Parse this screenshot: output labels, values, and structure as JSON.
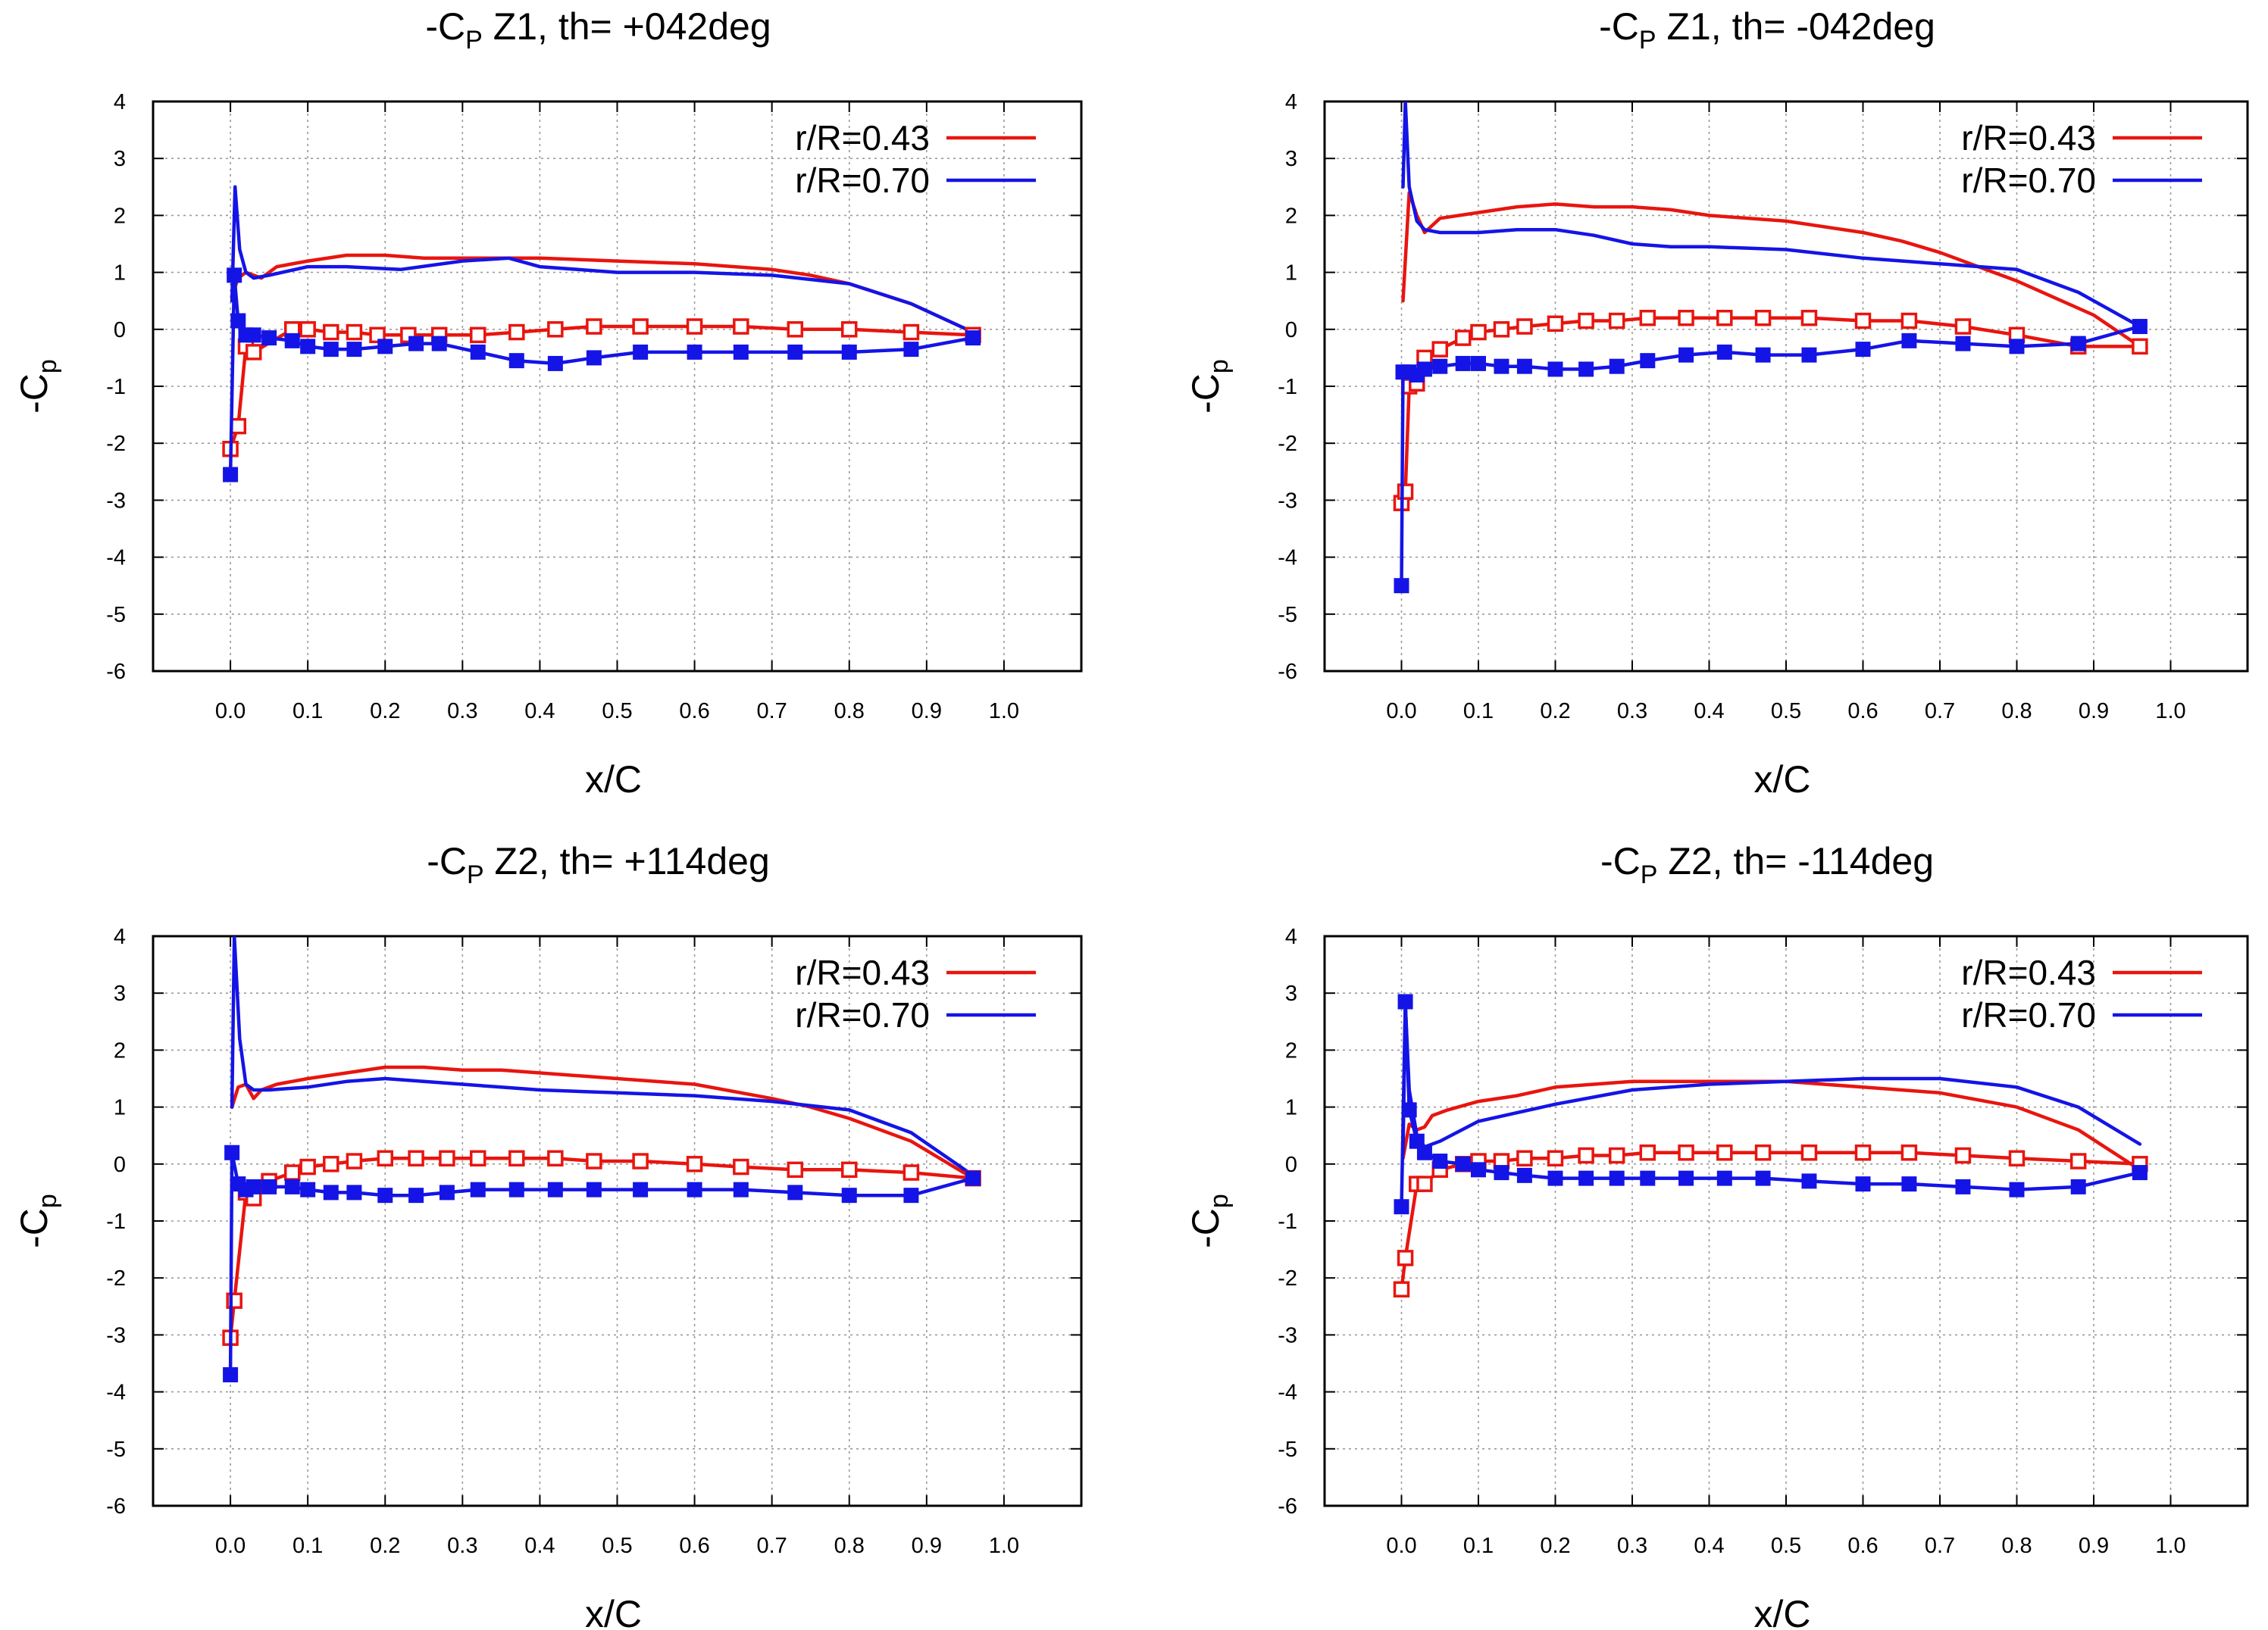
{
  "colors": {
    "r043": "#e8150f",
    "r070": "#1414e6",
    "grid": "#9a9a9a",
    "axis": "#000000"
  },
  "chart_data": [
    {
      "type": "line",
      "title": {
        "prefix": "-C",
        "sub": "P",
        "rest": " Z1, th= +042deg"
      },
      "xlabel": "x/C",
      "ylabel": {
        "prefix": "-C",
        "sub": "p"
      },
      "xlim": [
        -0.1,
        1.1
      ],
      "ylim": [
        -6,
        4
      ],
      "xticks": [
        "0.0",
        "0.1",
        "0.2",
        "0.3",
        "0.4",
        "0.5",
        "0.6",
        "0.7",
        "0.8",
        "0.9",
        "1.0"
      ],
      "yticks": [
        "4",
        "3",
        "2",
        "1",
        "0",
        "-1",
        "-2",
        "-3",
        "-4",
        "-5",
        "-6"
      ],
      "legend": [
        "r/R=0.43",
        "r/R=0.70"
      ],
      "series": [
        {
          "name": "r/R=0.43",
          "color_key": "r043",
          "kind": "line",
          "x": [
            0.005,
            0.01,
            0.02,
            0.03,
            0.04,
            0.06,
            0.1,
            0.15,
            0.2,
            0.25,
            0.3,
            0.35,
            0.4,
            0.5,
            0.6,
            0.7,
            0.75,
            0.8,
            0.88,
            0.96
          ],
          "y": [
            0.7,
            0.9,
            1.0,
            0.95,
            0.9,
            1.1,
            1.2,
            1.3,
            1.3,
            1.25,
            1.25,
            1.25,
            1.25,
            1.2,
            1.15,
            1.05,
            0.95,
            0.8,
            0.45,
            -0.05
          ]
        },
        {
          "name": "r/R=0.70",
          "color_key": "r070",
          "kind": "line",
          "x": [
            0.002,
            0.006,
            0.012,
            0.02,
            0.03,
            0.05,
            0.1,
            0.15,
            0.22,
            0.3,
            0.36,
            0.4,
            0.5,
            0.6,
            0.7,
            0.8,
            0.88,
            0.96
          ],
          "y": [
            0.5,
            2.5,
            1.4,
            1.0,
            0.9,
            0.95,
            1.1,
            1.1,
            1.05,
            1.2,
            1.25,
            1.1,
            1.0,
            1.0,
            0.95,
            0.8,
            0.45,
            -0.05
          ]
        },
        {
          "name": "r/R=0.43",
          "color_key": "r043",
          "kind": "markers-open",
          "x": [
            0.0,
            0.01,
            0.02,
            0.03,
            0.08,
            0.1,
            0.13,
            0.16,
            0.19,
            0.23,
            0.27,
            0.32,
            0.37,
            0.42,
            0.47,
            0.53,
            0.6,
            0.66,
            0.73,
            0.8,
            0.88,
            0.96
          ],
          "y": [
            -2.1,
            -1.7,
            -0.3,
            -0.4,
            0.0,
            0.0,
            -0.05,
            -0.05,
            -0.1,
            -0.1,
            -0.1,
            -0.1,
            -0.05,
            0.0,
            0.05,
            0.05,
            0.05,
            0.05,
            0.0,
            0.0,
            -0.05,
            -0.1
          ]
        },
        {
          "name": "r/R=0.70",
          "color_key": "r070",
          "kind": "markers-filled",
          "x": [
            0.0,
            0.005,
            0.01,
            0.02,
            0.03,
            0.05,
            0.08,
            0.1,
            0.13,
            0.16,
            0.2,
            0.24,
            0.27,
            0.32,
            0.37,
            0.42,
            0.47,
            0.53,
            0.6,
            0.66,
            0.73,
            0.8,
            0.88,
            0.96
          ],
          "y": [
            -2.55,
            0.95,
            0.15,
            -0.1,
            -0.1,
            -0.15,
            -0.2,
            -0.3,
            -0.35,
            -0.35,
            -0.3,
            -0.25,
            -0.25,
            -0.4,
            -0.55,
            -0.6,
            -0.5,
            -0.4,
            -0.4,
            -0.4,
            -0.4,
            -0.4,
            -0.35,
            -0.15
          ]
        }
      ]
    },
    {
      "type": "line",
      "title": {
        "prefix": "-C",
        "sub": "P",
        "rest": " Z1, th= -042deg"
      },
      "xlabel": "x/C",
      "ylabel": {
        "prefix": "-C",
        "sub": "p"
      },
      "xlim": [
        -0.1,
        1.1
      ],
      "ylim": [
        -6,
        4
      ],
      "xticks": [
        "0.0",
        "0.1",
        "0.2",
        "0.3",
        "0.4",
        "0.5",
        "0.6",
        "0.7",
        "0.8",
        "0.9",
        "1.0"
      ],
      "yticks": [
        "4",
        "3",
        "2",
        "1",
        "0",
        "-1",
        "-2",
        "-3",
        "-4",
        "-5",
        "-6"
      ],
      "legend": [
        "r/R=0.43",
        "r/R=0.70"
      ],
      "series": [
        {
          "name": "r/R=0.43",
          "color_key": "r043",
          "kind": "line",
          "x": [
            0.002,
            0.01,
            0.02,
            0.03,
            0.05,
            0.1,
            0.15,
            0.2,
            0.25,
            0.3,
            0.35,
            0.4,
            0.5,
            0.6,
            0.65,
            0.7,
            0.75,
            0.8,
            0.9,
            0.96
          ],
          "y": [
            0.5,
            2.4,
            2.0,
            1.7,
            1.95,
            2.05,
            2.15,
            2.2,
            2.15,
            2.15,
            2.1,
            2.0,
            1.9,
            1.7,
            1.55,
            1.35,
            1.1,
            0.85,
            0.25,
            -0.3
          ]
        },
        {
          "name": "r/R=0.70",
          "color_key": "r070",
          "kind": "line",
          "x": [
            0.002,
            0.005,
            0.01,
            0.02,
            0.03,
            0.05,
            0.1,
            0.15,
            0.2,
            0.25,
            0.3,
            0.35,
            0.4,
            0.5,
            0.6,
            0.7,
            0.8,
            0.88,
            0.96
          ],
          "y": [
            2.5,
            4.0,
            2.5,
            1.9,
            1.75,
            1.7,
            1.7,
            1.75,
            1.75,
            1.65,
            1.5,
            1.45,
            1.45,
            1.4,
            1.25,
            1.15,
            1.05,
            0.65,
            0.05
          ]
        },
        {
          "name": "r/R=0.43",
          "color_key": "r043",
          "kind": "markers-open",
          "x": [
            0.0,
            0.005,
            0.01,
            0.02,
            0.03,
            0.05,
            0.08,
            0.1,
            0.13,
            0.16,
            0.2,
            0.24,
            0.28,
            0.32,
            0.37,
            0.42,
            0.47,
            0.53,
            0.6,
            0.66,
            0.73,
            0.8,
            0.88,
            0.96
          ],
          "y": [
            -3.05,
            -2.85,
            -1.0,
            -0.95,
            -0.5,
            -0.35,
            -0.15,
            -0.05,
            0.0,
            0.05,
            0.1,
            0.15,
            0.15,
            0.2,
            0.2,
            0.2,
            0.2,
            0.2,
            0.15,
            0.15,
            0.05,
            -0.1,
            -0.3,
            -0.3
          ]
        },
        {
          "name": "r/R=0.70",
          "color_key": "r070",
          "kind": "markers-filled",
          "x": [
            0.0,
            0.002,
            0.01,
            0.02,
            0.03,
            0.05,
            0.08,
            0.1,
            0.13,
            0.16,
            0.2,
            0.24,
            0.28,
            0.32,
            0.37,
            0.42,
            0.47,
            0.53,
            0.6,
            0.66,
            0.73,
            0.8,
            0.88,
            0.96
          ],
          "y": [
            -4.5,
            -0.75,
            -0.75,
            -0.8,
            -0.7,
            -0.65,
            -0.6,
            -0.6,
            -0.65,
            -0.65,
            -0.7,
            -0.7,
            -0.65,
            -0.55,
            -0.45,
            -0.4,
            -0.45,
            -0.45,
            -0.35,
            -0.2,
            -0.25,
            -0.3,
            -0.25,
            0.05
          ]
        }
      ]
    },
    {
      "type": "line",
      "title": {
        "prefix": "-C",
        "sub": "P",
        "rest": " Z2, th= +114deg"
      },
      "xlabel": "x/C",
      "ylabel": {
        "prefix": "-C",
        "sub": "p"
      },
      "xlim": [
        -0.1,
        1.1
      ],
      "ylim": [
        -6,
        4
      ],
      "xticks": [
        "0.0",
        "0.1",
        "0.2",
        "0.3",
        "0.4",
        "0.5",
        "0.6",
        "0.7",
        "0.8",
        "0.9",
        "1.0"
      ],
      "yticks": [
        "4",
        "3",
        "2",
        "1",
        "0",
        "-1",
        "-2",
        "-3",
        "-4",
        "-5",
        "-6"
      ],
      "legend": [
        "r/R=0.43",
        "r/R=0.70"
      ],
      "series": [
        {
          "name": "r/R=0.43",
          "color_key": "r043",
          "kind": "line",
          "x": [
            0.002,
            0.01,
            0.02,
            0.03,
            0.04,
            0.06,
            0.1,
            0.15,
            0.2,
            0.25,
            0.3,
            0.35,
            0.4,
            0.5,
            0.6,
            0.7,
            0.75,
            0.8,
            0.88,
            0.96
          ],
          "y": [
            1.0,
            1.35,
            1.4,
            1.15,
            1.3,
            1.4,
            1.5,
            1.6,
            1.7,
            1.7,
            1.65,
            1.65,
            1.6,
            1.5,
            1.4,
            1.15,
            1.0,
            0.8,
            0.4,
            -0.25
          ]
        },
        {
          "name": "r/R=0.70",
          "color_key": "r070",
          "kind": "line",
          "x": [
            0.002,
            0.005,
            0.012,
            0.02,
            0.03,
            0.05,
            0.1,
            0.15,
            0.2,
            0.25,
            0.3,
            0.35,
            0.4,
            0.5,
            0.6,
            0.7,
            0.8,
            0.88,
            0.96
          ],
          "y": [
            1.0,
            4.0,
            2.2,
            1.4,
            1.3,
            1.3,
            1.35,
            1.45,
            1.5,
            1.45,
            1.4,
            1.35,
            1.3,
            1.25,
            1.2,
            1.1,
            0.95,
            0.55,
            -0.2
          ]
        },
        {
          "name": "r/R=0.43",
          "color_key": "r043",
          "kind": "markers-open",
          "x": [
            0.0,
            0.005,
            0.02,
            0.03,
            0.05,
            0.08,
            0.1,
            0.13,
            0.16,
            0.2,
            0.24,
            0.28,
            0.32,
            0.37,
            0.42,
            0.47,
            0.53,
            0.6,
            0.66,
            0.73,
            0.8,
            0.88,
            0.96
          ],
          "y": [
            -3.05,
            -2.4,
            -0.5,
            -0.6,
            -0.3,
            -0.15,
            -0.05,
            0.0,
            0.05,
            0.1,
            0.1,
            0.1,
            0.1,
            0.1,
            0.1,
            0.05,
            0.05,
            0.0,
            -0.05,
            -0.1,
            -0.1,
            -0.15,
            -0.25
          ]
        },
        {
          "name": "r/R=0.70",
          "color_key": "r070",
          "kind": "markers-filled",
          "x": [
            0.0,
            0.002,
            0.01,
            0.02,
            0.03,
            0.05,
            0.08,
            0.1,
            0.13,
            0.16,
            0.2,
            0.24,
            0.28,
            0.32,
            0.37,
            0.42,
            0.47,
            0.53,
            0.6,
            0.66,
            0.73,
            0.8,
            0.88,
            0.96
          ],
          "y": [
            -3.7,
            0.2,
            -0.35,
            -0.45,
            -0.4,
            -0.4,
            -0.4,
            -0.45,
            -0.5,
            -0.5,
            -0.55,
            -0.55,
            -0.5,
            -0.45,
            -0.45,
            -0.45,
            -0.45,
            -0.45,
            -0.45,
            -0.45,
            -0.5,
            -0.55,
            -0.55,
            -0.25
          ]
        }
      ]
    },
    {
      "type": "line",
      "title": {
        "prefix": "-C",
        "sub": "P",
        "rest": " Z2, th= -114deg"
      },
      "xlabel": "x/C",
      "ylabel": {
        "prefix": "-C",
        "sub": "p"
      },
      "xlim": [
        -0.1,
        1.1
      ],
      "ylim": [
        -6,
        4
      ],
      "xticks": [
        "0.0",
        "0.1",
        "0.2",
        "0.3",
        "0.4",
        "0.5",
        "0.6",
        "0.7",
        "0.8",
        "0.9",
        "1.0"
      ],
      "yticks": [
        "4",
        "3",
        "2",
        "1",
        "0",
        "-1",
        "-2",
        "-3",
        "-4",
        "-5",
        "-6"
      ],
      "legend": [
        "r/R=0.43",
        "r/R=0.70"
      ],
      "series": [
        {
          "name": "r/R=0.43",
          "color_key": "r043",
          "kind": "line",
          "x": [
            0.002,
            0.01,
            0.02,
            0.03,
            0.04,
            0.06,
            0.1,
            0.15,
            0.2,
            0.25,
            0.3,
            0.37,
            0.45,
            0.5,
            0.6,
            0.7,
            0.8,
            0.88,
            0.96
          ],
          "y": [
            0.1,
            0.7,
            0.6,
            0.65,
            0.85,
            0.95,
            1.1,
            1.2,
            1.35,
            1.4,
            1.45,
            1.45,
            1.45,
            1.45,
            1.35,
            1.25,
            1.0,
            0.6,
            -0.1
          ]
        },
        {
          "name": "r/R=0.70",
          "color_key": "r070",
          "kind": "line",
          "x": [
            0.002,
            0.005,
            0.01,
            0.02,
            0.03,
            0.05,
            0.1,
            0.15,
            0.2,
            0.3,
            0.4,
            0.5,
            0.6,
            0.7,
            0.8,
            0.88,
            0.96
          ],
          "y": [
            0.2,
            2.8,
            1.3,
            0.5,
            0.3,
            0.4,
            0.75,
            0.9,
            1.05,
            1.3,
            1.4,
            1.45,
            1.5,
            1.5,
            1.35,
            1.0,
            0.35
          ]
        },
        {
          "name": "r/R=0.43",
          "color_key": "r043",
          "kind": "markers-open",
          "x": [
            0.0,
            0.005,
            0.02,
            0.03,
            0.05,
            0.08,
            0.1,
            0.13,
            0.16,
            0.2,
            0.24,
            0.28,
            0.32,
            0.37,
            0.42,
            0.47,
            0.53,
            0.6,
            0.66,
            0.73,
            0.8,
            0.88,
            0.96
          ],
          "y": [
            -2.2,
            -1.65,
            -0.35,
            -0.35,
            -0.1,
            0.0,
            0.05,
            0.05,
            0.1,
            0.1,
            0.15,
            0.15,
            0.2,
            0.2,
            0.2,
            0.2,
            0.2,
            0.2,
            0.2,
            0.15,
            0.1,
            0.05,
            0.0
          ]
        },
        {
          "name": "r/R=0.70",
          "color_key": "r070",
          "kind": "markers-filled",
          "x": [
            0.0,
            0.005,
            0.01,
            0.02,
            0.03,
            0.05,
            0.08,
            0.1,
            0.13,
            0.16,
            0.2,
            0.24,
            0.28,
            0.32,
            0.37,
            0.42,
            0.47,
            0.53,
            0.6,
            0.66,
            0.73,
            0.8,
            0.88,
            0.96
          ],
          "y": [
            -0.75,
            2.85,
            0.95,
            0.4,
            0.2,
            0.05,
            0.0,
            -0.1,
            -0.15,
            -0.2,
            -0.25,
            -0.25,
            -0.25,
            -0.25,
            -0.25,
            -0.25,
            -0.25,
            -0.3,
            -0.35,
            -0.35,
            -0.4,
            -0.45,
            -0.4,
            -0.15
          ]
        }
      ]
    }
  ]
}
